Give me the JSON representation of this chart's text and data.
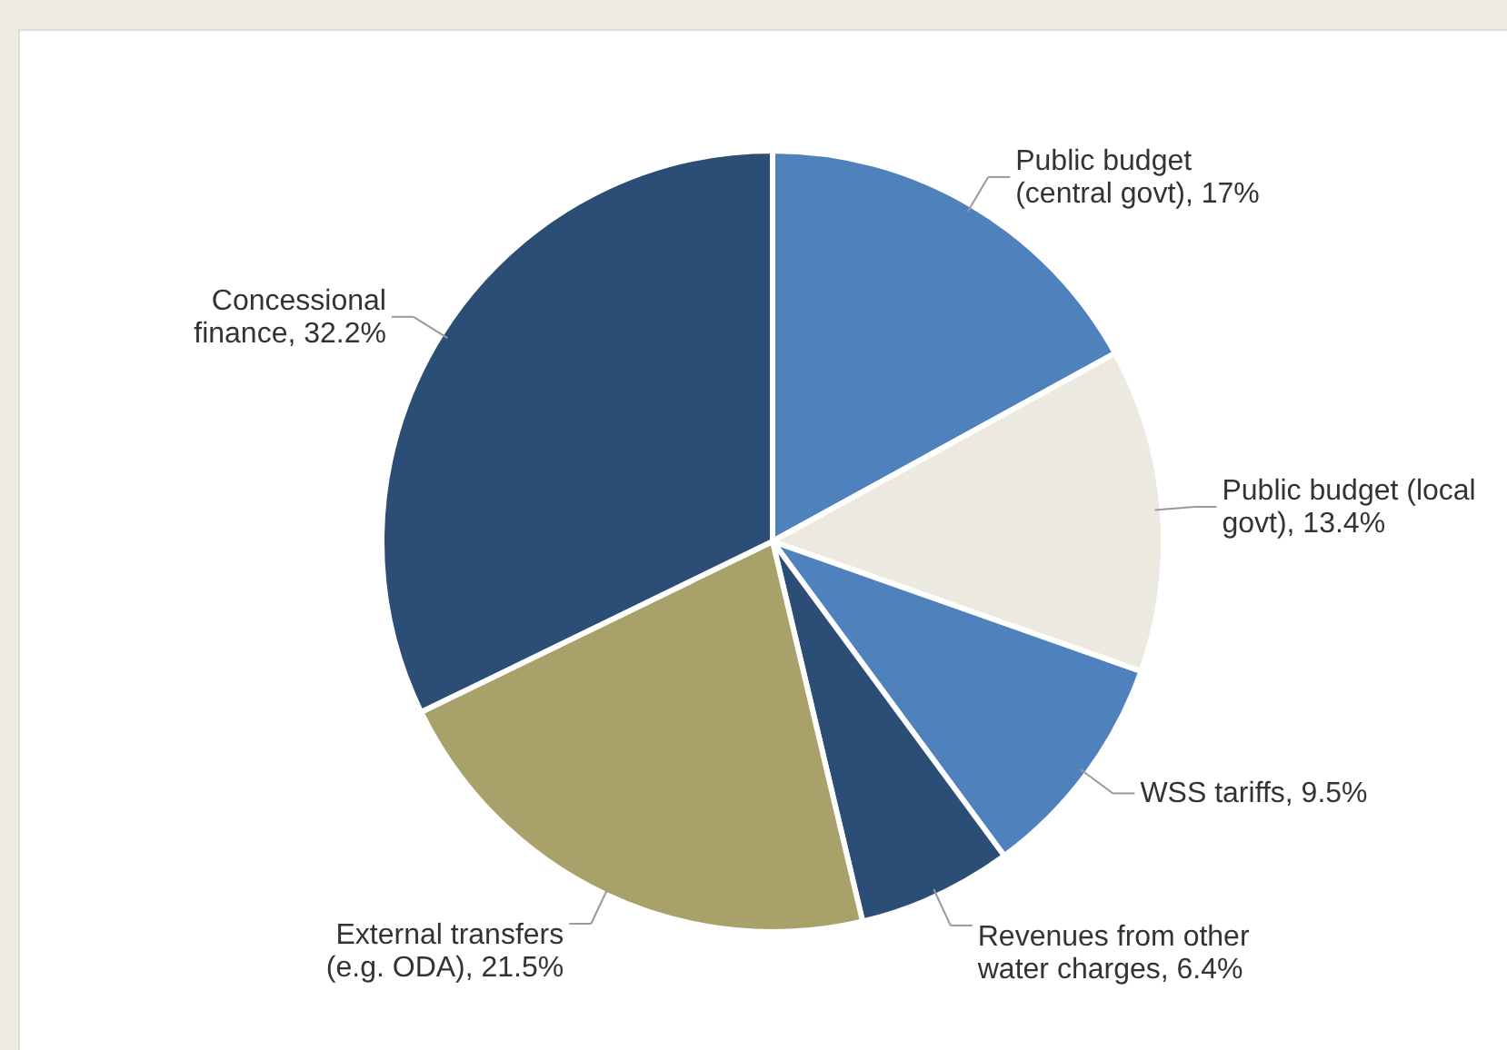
{
  "chart_data": {
    "type": "pie",
    "categories": [
      "Public budget (central govt)",
      "Public budget (local govt)",
      "WSS tariffs",
      "Revenues from other water charges",
      "External transfers (e.g. ODA)",
      "Concessional finance"
    ],
    "values": [
      17,
      13.4,
      9.5,
      6.4,
      21.5,
      32.2
    ],
    "colors": [
      "#4f81bd",
      "#eceae0",
      "#4f81bd",
      "#2c4d75",
      "#a9a16a",
      "#2c4d75"
    ],
    "value_labels": [
      "17%",
      "13.4%",
      "9.5%",
      "6.4%",
      "21.5%",
      "32.2%"
    ]
  }
}
